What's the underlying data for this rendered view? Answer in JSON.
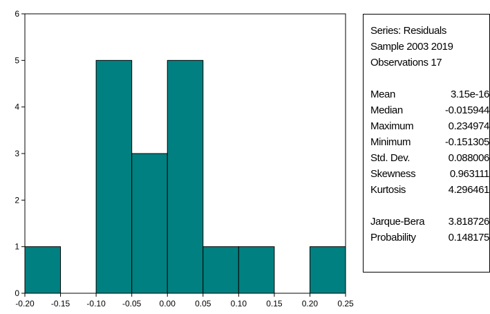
{
  "chart_data": {
    "type": "bar",
    "title": "",
    "xlabel": "",
    "ylabel": "",
    "bins": [
      {
        "from": -0.2,
        "to": -0.15,
        "count": 1
      },
      {
        "from": -0.15,
        "to": -0.1,
        "count": 0
      },
      {
        "from": -0.1,
        "to": -0.05,
        "count": 5
      },
      {
        "from": -0.05,
        "to": 0.0,
        "count": 3
      },
      {
        "from": 0.0,
        "to": 0.05,
        "count": 5
      },
      {
        "from": 0.05,
        "to": 0.1,
        "count": 1
      },
      {
        "from": 0.1,
        "to": 0.15,
        "count": 1
      },
      {
        "from": 0.15,
        "to": 0.2,
        "count": 0
      },
      {
        "from": 0.2,
        "to": 0.25,
        "count": 1
      }
    ],
    "xlim": [
      -0.2,
      0.25
    ],
    "ylim": [
      0,
      6
    ],
    "x_ticks": [
      "-0.20",
      "-0.15",
      "-0.10",
      "-0.05",
      "0.00",
      "0.05",
      "0.10",
      "0.15",
      "0.20",
      "0.25"
    ],
    "y_ticks": [
      "0",
      "1",
      "2",
      "3",
      "4",
      "5",
      "6"
    ],
    "bar_color": "#008080",
    "grid": false,
    "legend": "none"
  },
  "stats": {
    "series_line": "Series: Residuals",
    "sample_line": "Sample 2003 2019",
    "observations_line": "Observations 17",
    "rows": [
      {
        "name": "Mean",
        "value": "3.15e-16"
      },
      {
        "name": "Median",
        "value": "-0.015944"
      },
      {
        "name": "Maximum",
        "value": "0.234974"
      },
      {
        "name": "Minimum",
        "value": "-0.151305"
      },
      {
        "name": "Std. Dev.",
        "value": "0.088006"
      },
      {
        "name": "Skewness",
        "value": "0.963111"
      },
      {
        "name": "Kurtosis",
        "value": "4.296461"
      }
    ],
    "test_rows": [
      {
        "name": "Jarque-Bera",
        "value": "3.818726"
      },
      {
        "name": "Probability",
        "value": "0.148175"
      }
    ]
  }
}
